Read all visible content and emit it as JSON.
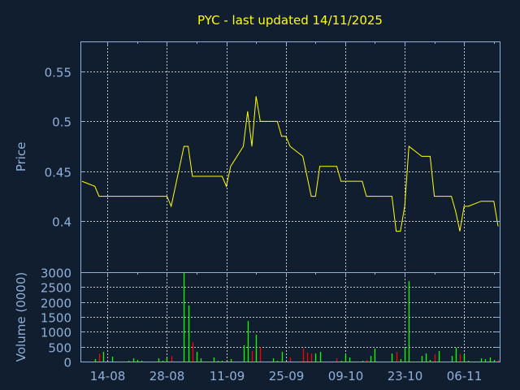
{
  "title": "PYC - last updated 14/11/2025",
  "colors": {
    "background": "#111e30",
    "price_line": "#ffff00",
    "volume_up": "#00ff00",
    "volume_down": "#ff0000",
    "axis": "#8fb0d8",
    "grid": "#c8c8c8",
    "title": "#ffff00"
  },
  "chart_data": [
    {
      "type": "line",
      "title": "PYC - last updated 14/11/2025",
      "ylabel": "Price",
      "xlim": [
        "2025-08-08",
        "2025-11-14"
      ],
      "ylim": [
        0.349,
        0.58
      ],
      "yticks": [
        "0.4",
        "0.45",
        "0.5",
        "0.55"
      ],
      "xticks": [
        {
          "date": "2025-08-14",
          "label": "14-08"
        },
        {
          "date": "2025-08-28",
          "label": "28-08"
        },
        {
          "date": "2025-09-11",
          "label": "11-09"
        },
        {
          "date": "2025-09-25",
          "label": "25-09"
        },
        {
          "date": "2025-10-09",
          "label": "09-10"
        },
        {
          "date": "2025-10-23",
          "label": "23-10"
        },
        {
          "date": "2025-11-06",
          "label": "06-11"
        }
      ],
      "grid": true,
      "x": [
        "2025-08-08",
        "2025-08-11",
        "2025-08-12",
        "2025-08-13",
        "2025-08-14",
        "2025-08-15",
        "2025-08-18",
        "2025-08-19",
        "2025-08-20",
        "2025-08-21",
        "2025-08-22",
        "2025-08-25",
        "2025-08-26",
        "2025-08-27",
        "2025-08-28",
        "2025-08-29",
        "2025-09-01",
        "2025-09-02",
        "2025-09-03",
        "2025-09-04",
        "2025-09-05",
        "2025-09-08",
        "2025-09-09",
        "2025-09-10",
        "2025-09-11",
        "2025-09-12",
        "2025-09-15",
        "2025-09-16",
        "2025-09-17",
        "2025-09-18",
        "2025-09-19",
        "2025-09-22",
        "2025-09-23",
        "2025-09-24",
        "2025-09-25",
        "2025-09-26",
        "2025-09-29",
        "2025-09-30",
        "2025-10-01",
        "2025-10-02",
        "2025-10-03",
        "2025-10-06",
        "2025-10-07",
        "2025-10-08",
        "2025-10-09",
        "2025-10-10",
        "2025-10-13",
        "2025-10-14",
        "2025-10-15",
        "2025-10-16",
        "2025-10-17",
        "2025-10-20",
        "2025-10-21",
        "2025-10-22",
        "2025-10-23",
        "2025-10-24",
        "2025-10-27",
        "2025-10-28",
        "2025-10-29",
        "2025-10-30",
        "2025-10-31",
        "2025-11-03",
        "2025-11-04",
        "2025-11-05",
        "2025-11-06",
        "2025-11-07",
        "2025-11-10",
        "2025-11-11",
        "2025-11-12",
        "2025-11-13",
        "2025-11-14"
      ],
      "series": [
        {
          "values": [
            0.44,
            0.435,
            0.425,
            0.425,
            0.425,
            0.425,
            0.425,
            0.425,
            0.425,
            0.425,
            0.425,
            0.425,
            0.425,
            0.425,
            0.425,
            0.415,
            0.475,
            0.475,
            0.445,
            0.445,
            0.445,
            0.445,
            0.445,
            0.445,
            0.435,
            0.455,
            0.475,
            0.51,
            0.475,
            0.525,
            0.5,
            0.5,
            0.5,
            0.485,
            0.485,
            0.475,
            0.465,
            0.445,
            0.425,
            0.425,
            0.455,
            0.455,
            0.455,
            0.44,
            0.44,
            0.44,
            0.44,
            0.425,
            0.425,
            0.425,
            0.425,
            0.425,
            0.39,
            0.39,
            0.415,
            0.475,
            0.465,
            0.465,
            0.465,
            0.425,
            0.425,
            0.425,
            0.41,
            0.39,
            0.415,
            0.415,
            0.42,
            0.42,
            0.42,
            0.42,
            0.395
          ]
        }
      ]
    },
    {
      "type": "bar",
      "ylabel": "Volume (0000)",
      "ylim": [
        0,
        3000
      ],
      "yticks": [
        "0",
        "500",
        "1000",
        "1500",
        "2000",
        "2500",
        "3000"
      ],
      "grid": true,
      "bars": [
        {
          "date": "2025-08-11",
          "value": 82,
          "dir": "up"
        },
        {
          "date": "2025-08-12",
          "value": 264,
          "dir": "down"
        },
        {
          "date": "2025-08-13",
          "value": 327,
          "dir": "up"
        },
        {
          "date": "2025-08-15",
          "value": 164,
          "dir": "up"
        },
        {
          "date": "2025-08-19",
          "value": 27,
          "dir": "up"
        },
        {
          "date": "2025-08-20",
          "value": 109,
          "dir": "up"
        },
        {
          "date": "2025-08-21",
          "value": 55,
          "dir": "up"
        },
        {
          "date": "2025-08-22",
          "value": 27,
          "dir": "up"
        },
        {
          "date": "2025-08-26",
          "value": 109,
          "dir": "up"
        },
        {
          "date": "2025-08-27",
          "value": 27,
          "dir": "up"
        },
        {
          "date": "2025-08-28",
          "value": 118,
          "dir": "up"
        },
        {
          "date": "2025-08-29",
          "value": 191,
          "dir": "down"
        },
        {
          "date": "2025-09-01",
          "value": 2973,
          "dir": "up"
        },
        {
          "date": "2025-09-02",
          "value": 1882,
          "dir": "up"
        },
        {
          "date": "2025-09-03",
          "value": 655,
          "dir": "down"
        },
        {
          "date": "2025-09-04",
          "value": 327,
          "dir": "up"
        },
        {
          "date": "2025-09-05",
          "value": 109,
          "dir": "up"
        },
        {
          "date": "2025-09-08",
          "value": 136,
          "dir": "up"
        },
        {
          "date": "2025-09-09",
          "value": 27,
          "dir": "up"
        },
        {
          "date": "2025-09-10",
          "value": 27,
          "dir": "up"
        },
        {
          "date": "2025-09-12",
          "value": 82,
          "dir": "up"
        },
        {
          "date": "2025-09-15",
          "value": 545,
          "dir": "up"
        },
        {
          "date": "2025-09-16",
          "value": 1364,
          "dir": "up"
        },
        {
          "date": "2025-09-17",
          "value": 355,
          "dir": "down"
        },
        {
          "date": "2025-09-18",
          "value": 900,
          "dir": "up"
        },
        {
          "date": "2025-09-19",
          "value": 482,
          "dir": "down"
        },
        {
          "date": "2025-09-22",
          "value": 109,
          "dir": "up"
        },
        {
          "date": "2025-09-23",
          "value": 27,
          "dir": "up"
        },
        {
          "date": "2025-09-24",
          "value": 327,
          "dir": "up"
        },
        {
          "date": "2025-09-26",
          "value": 136,
          "dir": "down"
        },
        {
          "date": "2025-09-29",
          "value": 436,
          "dir": "down"
        },
        {
          "date": "2025-09-30",
          "value": 300,
          "dir": "down"
        },
        {
          "date": "2025-10-01",
          "value": 273,
          "dir": "down"
        },
        {
          "date": "2025-10-02",
          "value": 273,
          "dir": "up"
        },
        {
          "date": "2025-10-03",
          "value": 327,
          "dir": "up"
        },
        {
          "date": "2025-10-07",
          "value": 109,
          "dir": "down"
        },
        {
          "date": "2025-10-08",
          "value": 27,
          "dir": "up"
        },
        {
          "date": "2025-10-09",
          "value": 245,
          "dir": "up"
        },
        {
          "date": "2025-10-10",
          "value": 136,
          "dir": "up"
        },
        {
          "date": "2025-10-13",
          "value": 27,
          "dir": "up"
        },
        {
          "date": "2025-10-14",
          "value": 55,
          "dir": "down"
        },
        {
          "date": "2025-10-15",
          "value": 191,
          "dir": "up"
        },
        {
          "date": "2025-10-16",
          "value": 436,
          "dir": "up"
        },
        {
          "date": "2025-10-20",
          "value": 273,
          "dir": "up"
        },
        {
          "date": "2025-10-21",
          "value": 327,
          "dir": "down"
        },
        {
          "date": "2025-10-22",
          "value": 82,
          "dir": "up"
        },
        {
          "date": "2025-10-23",
          "value": 464,
          "dir": "up"
        },
        {
          "date": "2025-10-24",
          "value": 2700,
          "dir": "up"
        },
        {
          "date": "2025-10-27",
          "value": 191,
          "dir": "up"
        },
        {
          "date": "2025-10-28",
          "value": 273,
          "dir": "up"
        },
        {
          "date": "2025-10-29",
          "value": 55,
          "dir": "up"
        },
        {
          "date": "2025-10-30",
          "value": 245,
          "dir": "down"
        },
        {
          "date": "2025-10-31",
          "value": 355,
          "dir": "up"
        },
        {
          "date": "2025-11-03",
          "value": 191,
          "dir": "up"
        },
        {
          "date": "2025-11-04",
          "value": 464,
          "dir": "up"
        },
        {
          "date": "2025-11-05",
          "value": 245,
          "dir": "down"
        },
        {
          "date": "2025-11-06",
          "value": 245,
          "dir": "up"
        },
        {
          "date": "2025-11-07",
          "value": 27,
          "dir": "up"
        },
        {
          "date": "2025-11-10",
          "value": 109,
          "dir": "up"
        },
        {
          "date": "2025-11-11",
          "value": 82,
          "dir": "up"
        },
        {
          "date": "2025-11-12",
          "value": 136,
          "dir": "up"
        },
        {
          "date": "2025-11-13",
          "value": 55,
          "dir": "up"
        },
        {
          "date": "2025-11-14",
          "value": 55,
          "dir": "down"
        }
      ]
    }
  ]
}
